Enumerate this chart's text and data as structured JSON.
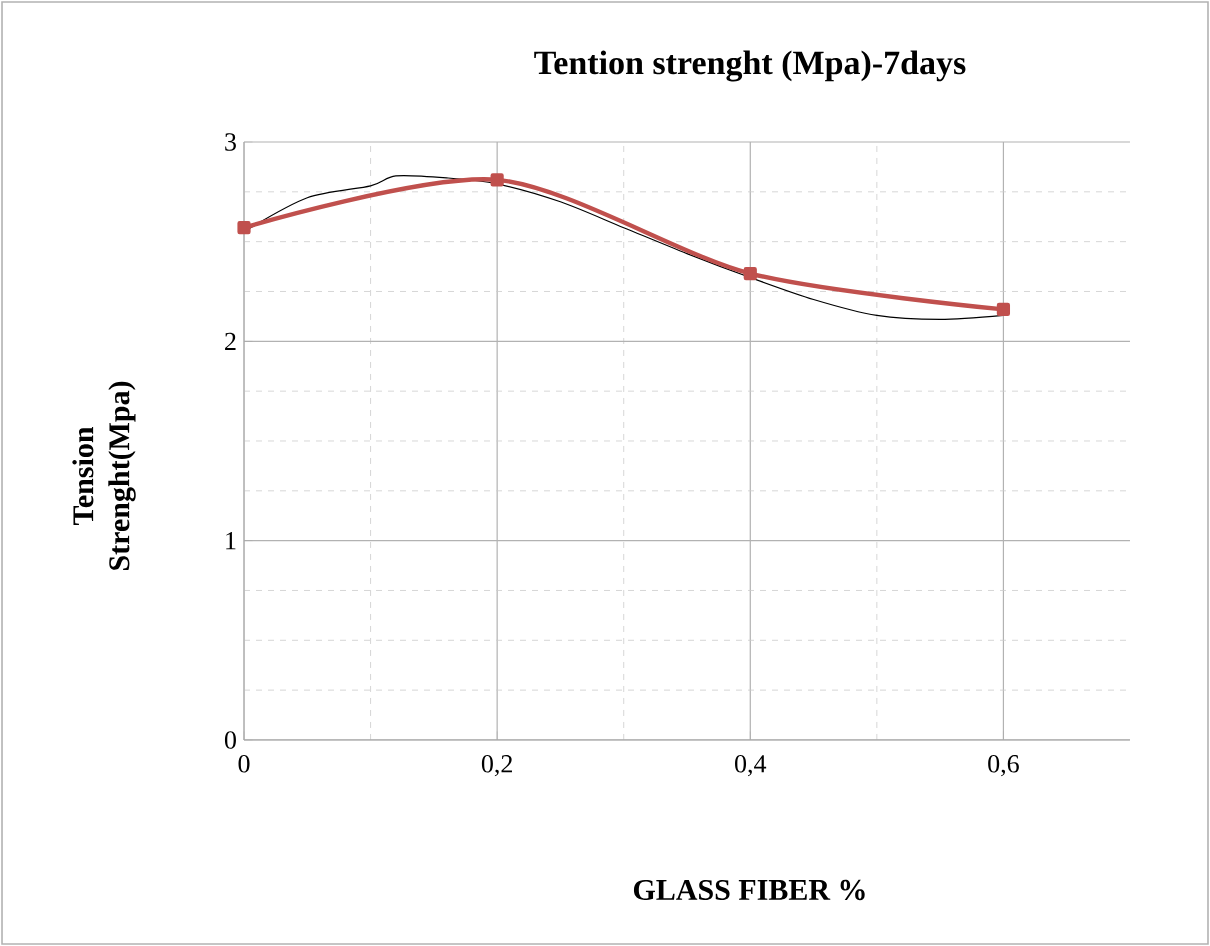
{
  "chart_data": {
    "type": "line",
    "title": "Tention strenght (Mpa)-7days",
    "xlabel": "GLASS FIBER %",
    "ylabel": "Tension Strenght(Mpa)",
    "xlim": [
      0,
      0.7
    ],
    "ylim": [
      0,
      3
    ],
    "xticks": [
      0,
      {
        "value": 0.2,
        "label": "0,2"
      },
      {
        "value": 0.4,
        "label": "0,4"
      },
      {
        "value": 0.6,
        "label": "0,6"
      }
    ],
    "yticks": [
      0,
      1,
      2,
      3
    ],
    "grid": true,
    "series": [
      {
        "color": "#000000",
        "marker": "none",
        "x": [
          0,
          0.05,
          0.1,
          0.12,
          0.16,
          0.2,
          0.25,
          0.3,
          0.35,
          0.4,
          0.45,
          0.5,
          0.55,
          0.6
        ],
        "values": [
          2.55,
          2.72,
          2.78,
          2.83,
          2.82,
          2.79,
          2.7,
          2.57,
          2.44,
          2.32,
          2.21,
          2.13,
          2.11,
          2.13
        ]
      },
      {
        "color": "#c0504d",
        "marker": "square",
        "x": [
          0,
          0.2,
          0.4,
          0.6
        ],
        "values": [
          2.57,
          2.81,
          2.34,
          2.16
        ]
      }
    ]
  }
}
